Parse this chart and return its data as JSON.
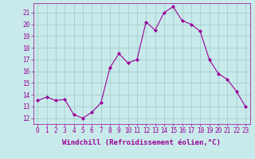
{
  "x": [
    0,
    1,
    2,
    3,
    4,
    5,
    6,
    7,
    8,
    9,
    10,
    11,
    12,
    13,
    14,
    15,
    16,
    17,
    18,
    19,
    20,
    21,
    22,
    23
  ],
  "y": [
    13.5,
    13.8,
    13.5,
    13.6,
    12.3,
    12.0,
    12.5,
    13.3,
    16.3,
    17.5,
    16.7,
    17.0,
    20.2,
    19.5,
    21.0,
    21.5,
    20.3,
    20.0,
    19.4,
    17.0,
    15.8,
    15.3,
    14.3,
    13.0
  ],
  "line_color": "#990099",
  "marker": "D",
  "marker_size": 2,
  "bg_color": "#c8eaea",
  "grid_color": "#9ec8c8",
  "xlabel": "Windchill (Refroidissement éolien,°C)",
  "ylim_min": 11.5,
  "ylim_max": 21.8,
  "xlim_min": -0.5,
  "xlim_max": 23.5,
  "yticks": [
    12,
    13,
    14,
    15,
    16,
    17,
    18,
    19,
    20,
    21
  ],
  "xticks": [
    0,
    1,
    2,
    3,
    4,
    5,
    6,
    7,
    8,
    9,
    10,
    11,
    12,
    13,
    14,
    15,
    16,
    17,
    18,
    19,
    20,
    21,
    22,
    23
  ],
  "tick_fontsize": 5.5,
  "xlabel_fontsize": 6.5
}
